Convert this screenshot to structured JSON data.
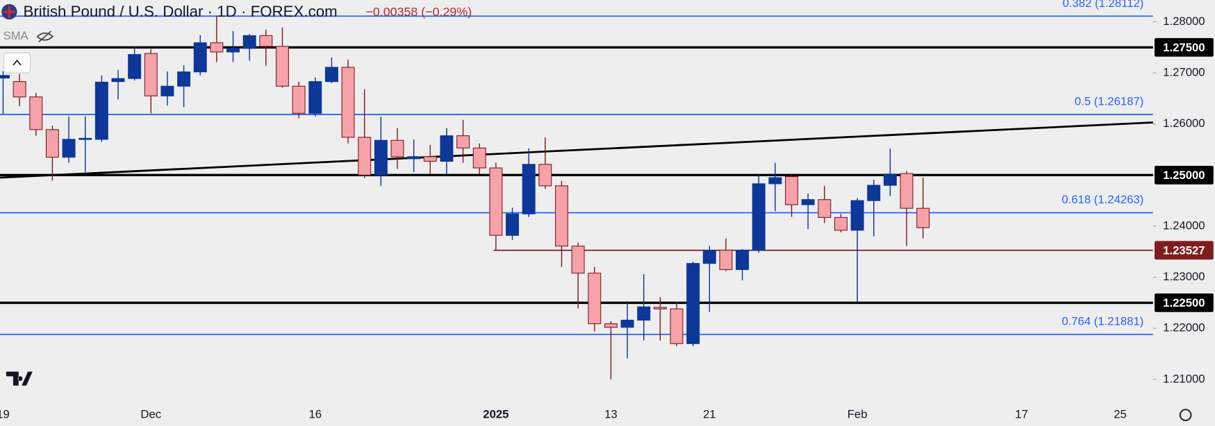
{
  "chart_data": {
    "type": "candlestick",
    "title": "British Pound / U.S. Dollar · 1D · FOREX.com",
    "subtitle": "−0.00358 (−0.29%)",
    "indicator": "SMA",
    "categories": [
      "19",
      null,
      null,
      null,
      null,
      null,
      null,
      null,
      null,
      "Dec",
      null,
      null,
      null,
      null,
      null,
      null,
      null,
      null,
      null,
      "16",
      null,
      null,
      null,
      null,
      null,
      null,
      null,
      null,
      null,
      null,
      "2025",
      null,
      null,
      null,
      null,
      null,
      null,
      "13",
      null,
      null,
      null,
      null,
      null,
      "21",
      null,
      null,
      null,
      null,
      null,
      null,
      null,
      null,
      "Feb",
      null,
      null,
      null,
      null,
      null,
      null,
      null,
      null,
      null,
      "17",
      null,
      null,
      null,
      null,
      null,
      "25",
      null,
      null
    ],
    "open": [
      1.269,
      1.2683,
      1.2653,
      1.2589,
      1.2535,
      1.257,
      1.257,
      1.2683,
      1.2689,
      1.2738,
      1.2655,
      1.2674,
      1.2702,
      1.2759,
      1.2741,
      1.2748,
      1.2773,
      1.2752,
      1.2674,
      1.2621,
      1.2683,
      1.2711,
      1.2574,
      1.25,
      1.2568,
      1.2532,
      1.2536,
      1.2527,
      1.2577,
      1.2553,
      1.2514,
      1.2382,
      1.2424,
      1.2521,
      1.2479,
      1.2361,
      1.2308,
      1.2209,
      1.2202,
      1.2216,
      1.2241,
      1.2238,
      1.217,
      1.2327,
      1.2353,
      1.2315,
      1.2353,
      1.2483,
      1.2497,
      1.2442,
      1.2452,
      1.2417,
      1.2392,
      1.245,
      1.248,
      1.2503,
      1.2435,
      null,
      null,
      null,
      null,
      null,
      null,
      null,
      null,
      null,
      null,
      null,
      null,
      null,
      null
    ],
    "high": [
      1.2703,
      1.2698,
      1.2661,
      1.2597,
      1.2615,
      1.2615,
      1.2695,
      1.2706,
      1.2752,
      1.2747,
      1.2703,
      1.2715,
      1.2774,
      1.2812,
      1.2782,
      1.2776,
      1.2785,
      1.2789,
      1.2683,
      1.2691,
      1.273,
      1.2726,
      1.2668,
      1.2614,
      1.2592,
      1.257,
      1.2559,
      1.2592,
      1.2608,
      1.2562,
      1.2524,
      1.2436,
      1.2552,
      1.2574,
      1.2489,
      1.2368,
      1.232,
      1.2214,
      1.2253,
      1.2306,
      1.2261,
      1.2252,
      1.233,
      1.2361,
      1.2376,
      1.2355,
      1.25,
      1.2524,
      1.25,
      1.2464,
      1.2479,
      1.2424,
      1.2455,
      1.2491,
      1.2552,
      1.2508,
      1.2495,
      null,
      null,
      null,
      null,
      null,
      null,
      null,
      null,
      null,
      null,
      null,
      null,
      null,
      null
    ],
    "low": [
      1.262,
      1.2635,
      1.2577,
      1.2489,
      1.2524,
      1.2506,
      1.2565,
      1.2648,
      1.2685,
      1.2621,
      1.2636,
      1.2633,
      1.2695,
      1.2721,
      1.2721,
      1.2724,
      1.2714,
      1.2671,
      1.2611,
      1.2615,
      1.268,
      1.2562,
      1.2494,
      1.2479,
      1.2512,
      1.2506,
      1.2502,
      1.2503,
      1.2524,
      1.2502,
      1.2353,
      1.2373,
      1.2418,
      1.2473,
      1.232,
      1.2239,
      1.2194,
      1.21,
      1.2141,
      1.2176,
      1.2176,
      1.2165,
      1.2165,
      1.2232,
      1.2312,
      1.2294,
      1.2348,
      1.2429,
      1.2418,
      1.2394,
      1.2406,
      1.2388,
      1.2252,
      1.238,
      1.2459,
      1.2361,
      1.2376,
      null,
      null,
      null,
      null,
      null,
      null,
      null,
      null,
      null,
      null,
      null,
      null,
      null,
      null
    ],
    "close": [
      1.2695,
      1.2653,
      1.2589,
      1.2535,
      1.257,
      1.2572,
      1.2682,
      1.2689,
      1.2736,
      1.2655,
      1.2674,
      1.2702,
      1.2759,
      1.2741,
      1.2748,
      1.2773,
      1.2752,
      1.2674,
      1.2621,
      1.2683,
      1.2711,
      1.2574,
      1.25,
      1.2568,
      1.2536,
      1.2536,
      1.2527,
      1.2577,
      1.2553,
      1.2514,
      1.2382,
      1.2424,
      1.2521,
      1.2479,
      1.2361,
      1.2308,
      1.2209,
      1.2202,
      1.2216,
      1.2242,
      1.2238,
      1.217,
      1.2327,
      1.2353,
      1.2315,
      1.2353,
      1.2483,
      1.2495,
      1.2442,
      1.2452,
      1.2417,
      1.2392,
      1.245,
      1.248,
      1.2502,
      1.2435,
      1.2397,
      null,
      null,
      null,
      null,
      null,
      null,
      null,
      null,
      null,
      null,
      null,
      null,
      null,
      null
    ],
    "up_color": "#0d3799",
    "down_color": "#f7a1a8",
    "down_edge": "#7a1f24",
    "ylim": [
      1.20576,
      1.28424
    ],
    "yticks": [
      {
        "value": 1.28,
        "label": "1.28000"
      },
      {
        "value": 1.27,
        "label": "1.27000"
      },
      {
        "value": 1.26,
        "label": "1.26000"
      },
      {
        "value": 1.25,
        "label": "1.25000"
      },
      {
        "value": 1.24,
        "label": "1.24000"
      },
      {
        "value": 1.23,
        "label": "1.23000"
      },
      {
        "value": 1.22,
        "label": "1.22000"
      },
      {
        "value": 1.21,
        "label": "1.21000"
      }
    ],
    "grid": false,
    "levels": [
      {
        "value": 1.275,
        "label": "1.27500",
        "color": "#000000"
      },
      {
        "value": 1.25,
        "label": "1.25000",
        "color": "#000000"
      },
      {
        "value": 1.225,
        "label": "1.22500",
        "color": "#000000"
      }
    ],
    "support": {
      "value": 1.23527,
      "label": "1.23527",
      "color": "#7f1d1d"
    },
    "fib_levels": [
      {
        "value": 1.28112,
        "label": "0.382 (1.28112)"
      },
      {
        "value": 1.26187,
        "label": "0.5 (1.26187)"
      },
      {
        "value": 1.24263,
        "label": "0.618 (1.24263)"
      },
      {
        "value": 1.21881,
        "label": "0.764 (1.21881)"
      }
    ],
    "fib_color": "#2962ff",
    "trendline": [
      1.2495,
      1.2603
    ]
  }
}
